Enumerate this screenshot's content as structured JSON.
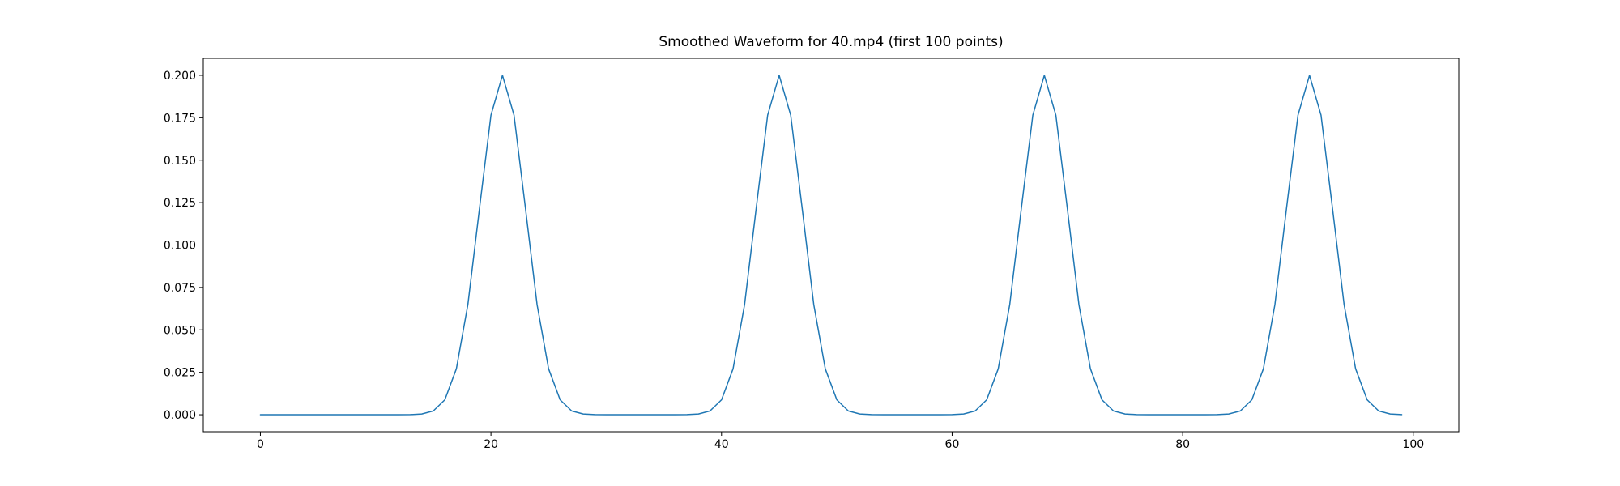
{
  "window": {
    "background": "#ffffff"
  },
  "chart_data": {
    "type": "line",
    "title": "Smoothed Waveform for 40.mp4 (first 100 points)",
    "xlabel": "",
    "ylabel": "",
    "grid": false,
    "legend": "none",
    "line_color": "#1f77b4",
    "axis_color": "#000000",
    "xlim": [
      -4.95,
      103.95
    ],
    "ylim": [
      -0.01,
      0.21
    ],
    "xticks": {
      "values": [
        0,
        20,
        40,
        60,
        80,
        100
      ],
      "labels": [
        "0",
        "20",
        "40",
        "60",
        "80",
        "100"
      ]
    },
    "yticks": {
      "values": [
        0.0,
        0.025,
        0.05,
        0.075,
        0.1,
        0.125,
        0.15,
        0.175,
        0.2
      ],
      "labels": [
        "0.000",
        "0.025",
        "0.050",
        "0.075",
        "0.100",
        "0.125",
        "0.150",
        "0.175",
        "0.200"
      ]
    },
    "peaks": {
      "x": [
        21,
        45,
        68,
        91
      ],
      "peak_value": 0.2
    },
    "x": [
      0,
      1,
      2,
      3,
      4,
      5,
      6,
      7,
      8,
      9,
      10,
      11,
      12,
      13,
      14,
      15,
      16,
      17,
      18,
      19,
      20,
      21,
      22,
      23,
      24,
      25,
      26,
      27,
      28,
      29,
      30,
      31,
      32,
      33,
      34,
      35,
      36,
      37,
      38,
      39,
      40,
      41,
      42,
      43,
      44,
      45,
      46,
      47,
      48,
      49,
      50,
      51,
      52,
      53,
      54,
      55,
      56,
      57,
      58,
      59,
      60,
      61,
      62,
      63,
      64,
      65,
      66,
      67,
      68,
      69,
      70,
      71,
      72,
      73,
      74,
      75,
      76,
      77,
      78,
      79,
      80,
      81,
      82,
      83,
      84,
      85,
      86,
      87,
      88,
      89,
      90,
      91,
      92,
      93,
      94,
      95,
      96,
      97,
      98,
      99
    ],
    "y": [
      0,
      0,
      0,
      0,
      0,
      0,
      0,
      0,
      0,
      0,
      0,
      0,
      1e-05,
      7e-05,
      0.00044,
      0.00222,
      0.00879,
      0.02707,
      0.06493,
      0.12131,
      0.1765,
      0.2,
      0.1765,
      0.12131,
      0.06493,
      0.02707,
      0.00879,
      0.00222,
      0.00044,
      7e-05,
      1e-05,
      0,
      0,
      0,
      0,
      0,
      1e-05,
      7e-05,
      0.00044,
      0.00222,
      0.00879,
      0.02707,
      0.06493,
      0.12131,
      0.1765,
      0.2,
      0.1765,
      0.12131,
      0.06493,
      0.02707,
      0.00879,
      0.00222,
      0.00044,
      7e-05,
      1e-05,
      0,
      0,
      0,
      0,
      1e-05,
      7e-05,
      0.00044,
      0.00222,
      0.00879,
      0.02707,
      0.06493,
      0.12131,
      0.1765,
      0.2,
      0.1765,
      0.12131,
      0.06493,
      0.02707,
      0.00879,
      0.00222,
      0.00044,
      7e-05,
      1e-05,
      0,
      0,
      0,
      0,
      1e-05,
      7e-05,
      0.00044,
      0.00222,
      0.00879,
      0.02707,
      0.06493,
      0.12131,
      0.1765,
      0.2,
      0.1765,
      0.12131,
      0.06493,
      0.02707,
      0.00879,
      0.00222,
      0.00044,
      7e-05
    ]
  }
}
